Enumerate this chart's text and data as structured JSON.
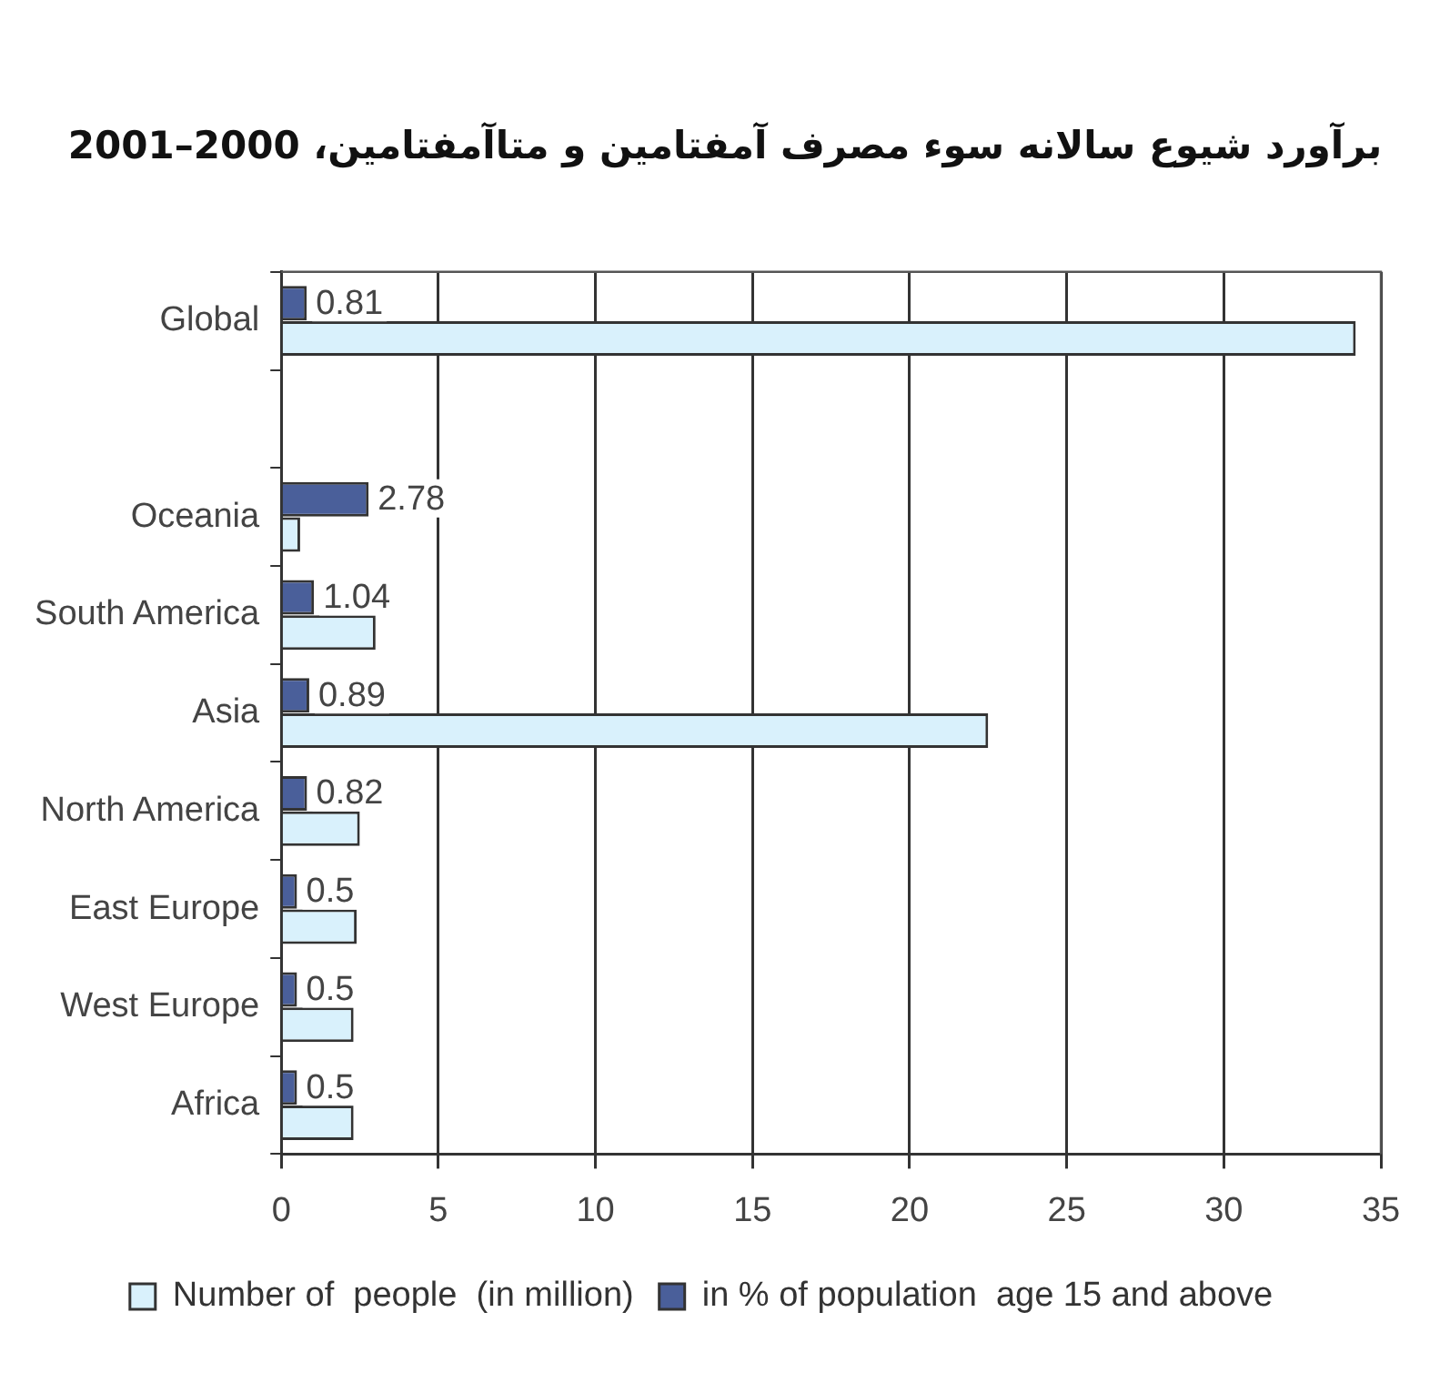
{
  "chart_data": {
    "type": "bar",
    "orientation": "horizontal",
    "title": "برآورد شیوع سالانه سوء مصرف آمفتامین و متاآمفتامین، 2000–2001",
    "categories": [
      "Global",
      null,
      "Oceania",
      "South America",
      "Asia",
      "North America",
      "East Europe",
      "West Europe",
      "Africa"
    ],
    "series": [
      {
        "name": "in % of population  age 15 and above",
        "color": "#4a5f9a",
        "values": [
          0.81,
          null,
          2.78,
          1.04,
          0.89,
          0.82,
          0.5,
          0.5,
          0.5
        ],
        "value_labels": [
          "0.81",
          null,
          "2.78",
          "1.04",
          "0.89",
          "0.82",
          "0.5",
          "0.5",
          "0.5"
        ]
      },
      {
        "name": "Number of  people  (in million)",
        "color": "#d9f1fc",
        "values": [
          34.2,
          null,
          0.6,
          3.0,
          22.5,
          2.5,
          2.4,
          2.3,
          2.3
        ]
      }
    ],
    "xlim": [
      0,
      35
    ],
    "xticks": [
      0,
      5,
      10,
      15,
      20,
      25,
      30,
      35
    ],
    "grid": "x",
    "legend": "bottom"
  }
}
